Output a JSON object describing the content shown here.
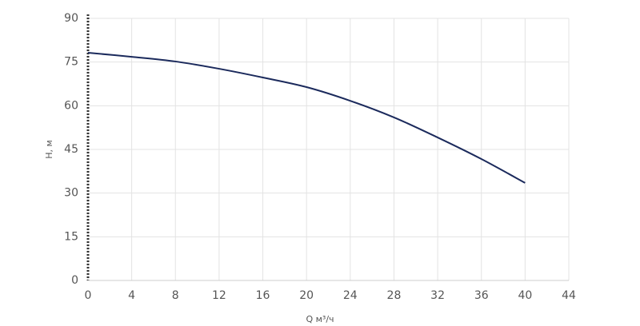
{
  "chart_data": {
    "type": "line",
    "xlabel": "Q м³/ч",
    "ylabel": "H, м",
    "x": [
      0,
      4,
      8,
      12,
      16,
      20,
      24,
      28,
      32,
      36,
      40
    ],
    "values": [
      78.2,
      76.8,
      75.2,
      72.7,
      69.7,
      66.4,
      61.7,
      56,
      49.1,
      41.7,
      33.5
    ],
    "color": "#1b2a5c",
    "xlim": [
      0,
      44
    ],
    "xticks": [
      0,
      4,
      8,
      12,
      16,
      20,
      24,
      28,
      32,
      36,
      40,
      44
    ],
    "ylim": [
      0,
      90
    ],
    "yticks": [
      0,
      15,
      30,
      45,
      60,
      75,
      90
    ],
    "grid": true
  }
}
